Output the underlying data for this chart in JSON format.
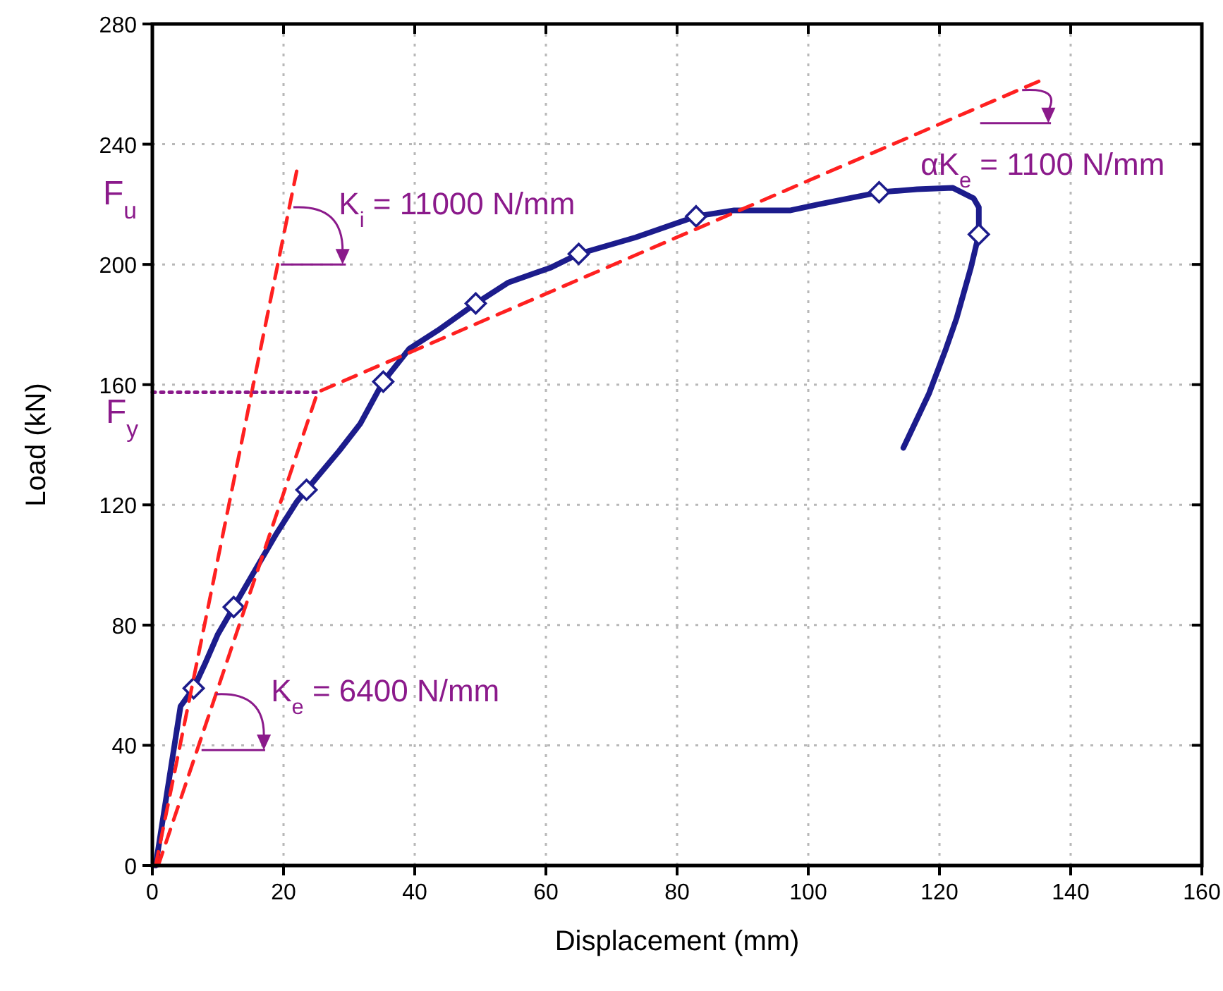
{
  "chart_data": {
    "type": "line",
    "xlabel": "Displacement (mm)",
    "ylabel": "Load (kN)",
    "xlim": [
      0,
      160
    ],
    "xticks": [
      0,
      20,
      40,
      60,
      80,
      100,
      120,
      140,
      160
    ],
    "ylim": [
      0,
      280
    ],
    "yticks": [
      0,
      40,
      80,
      120,
      160,
      200,
      240,
      280
    ],
    "grid": true,
    "series": [
      {
        "type": "line",
        "color": "#1c1c8c",
        "marker": "none",
        "line_style": "solid",
        "x": [
          0.5,
          4.3,
          6.3,
          8,
          10,
          12.4,
          15.6,
          18.8,
          22,
          23.5,
          28.5,
          31.7,
          35.2,
          39.2,
          43.5,
          49.3,
          54.3,
          60.8,
          65,
          73.7,
          82.9,
          88.7,
          97.3,
          101.6,
          110.8,
          116.6,
          122,
          125.2,
          126,
          126,
          124.8,
          122.6,
          121,
          118.4,
          114.5
        ],
        "values": [
          0,
          53,
          59,
          67,
          77,
          86,
          98,
          110,
          121,
          125,
          138,
          147,
          161,
          172,
          178,
          187,
          194,
          199,
          203.5,
          209,
          216,
          218,
          218,
          220,
          224,
          225,
          225.5,
          222,
          219,
          210,
          199,
          182,
          172,
          157,
          139
        ]
      },
      {
        "type": "scatter",
        "color": "#1c1c8c",
        "marker": "diamond",
        "x": [
          6.3,
          12.4,
          23.5,
          35.2,
          49.3,
          65,
          82.9,
          110.8,
          126
        ],
        "values": [
          59,
          86,
          125,
          161,
          187,
          203.5,
          216,
          224,
          210
        ]
      },
      {
        "type": "line",
        "color": "#ff2020",
        "marker": "none",
        "line_style": "dashed",
        "x": [
          0.5,
          22
        ],
        "values": [
          0,
          231
        ]
      },
      {
        "type": "line",
        "color": "#ff2020",
        "marker": "none",
        "line_style": "dashed",
        "x": [
          0.9,
          25.2,
          136.3
        ],
        "values": [
          0,
          157.5,
          262
        ]
      },
      {
        "type": "line",
        "color": "#8b1a8b",
        "marker": "none",
        "line_style": "dotted",
        "x": [
          0,
          25.2
        ],
        "values": [
          157.5,
          157.5
        ]
      }
    ],
    "annotations": [
      {
        "text": "K$_{i}$ = 11000 N/mm",
        "x": 20.9,
        "y": 219
      },
      {
        "text": "K$_{e}$ = 6400 N/mm",
        "x": 9.7,
        "y": 57
      },
      {
        "text": "αK$_{e}$ = 1100 N/mm",
        "x": 132.6,
        "y": 258.5
      },
      "F$_{u}$",
      "F$_{y}$"
    ]
  }
}
